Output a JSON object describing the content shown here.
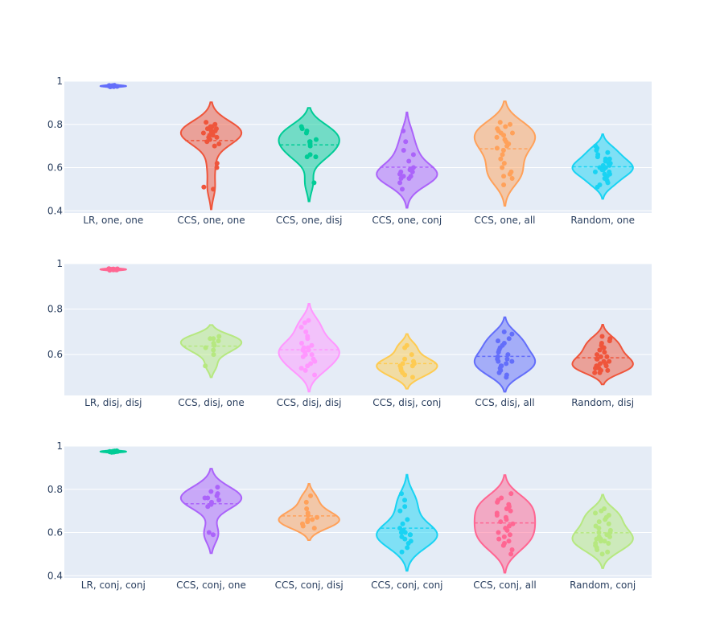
{
  "chart_data": [
    {
      "type": "violin",
      "ylim": [
        0.39,
        1.0
      ],
      "yticks": [
        0.4,
        0.6,
        0.8,
        1.0
      ],
      "ytick_labels": [
        "0.4",
        "0.6",
        "0.8",
        "1"
      ],
      "grid": true,
      "categories": [
        "LR, one, one",
        "CCS, one, one",
        "CCS, one, disj",
        "CCS, one, conj",
        "CCS, one, all",
        "Random, one"
      ],
      "colors": [
        "#636efa",
        "#EF553B",
        "#00cc96",
        "#ab63fa",
        "#FFA15A",
        "#19d3f3"
      ],
      "series": [
        {
          "values": [
            0.978,
            0.976,
            0.98,
            0.975,
            0.979,
            0.977,
            0.981,
            0.974,
            0.978,
            0.976
          ]
        },
        {
          "values": [
            0.81,
            0.8,
            0.79,
            0.79,
            0.78,
            0.78,
            0.77,
            0.77,
            0.77,
            0.76,
            0.76,
            0.76,
            0.75,
            0.75,
            0.74,
            0.74,
            0.73,
            0.72,
            0.71,
            0.7,
            0.62,
            0.6,
            0.51,
            0.5
          ]
        },
        {
          "values": [
            0.79,
            0.78,
            0.77,
            0.76,
            0.73,
            0.72,
            0.72,
            0.71,
            0.7,
            0.66,
            0.65,
            0.65,
            0.53
          ]
        },
        {
          "values": [
            0.77,
            0.72,
            0.68,
            0.66,
            0.63,
            0.6,
            0.59,
            0.58,
            0.58,
            0.57,
            0.56,
            0.56,
            0.55,
            0.55,
            0.53,
            0.5
          ]
        },
        {
          "values": [
            0.81,
            0.8,
            0.79,
            0.78,
            0.77,
            0.76,
            0.76,
            0.75,
            0.74,
            0.73,
            0.72,
            0.71,
            0.7,
            0.69,
            0.68,
            0.66,
            0.64,
            0.62,
            0.6,
            0.58,
            0.57,
            0.56,
            0.55,
            0.52
          ]
        },
        {
          "values": [
            0.7,
            0.69,
            0.68,
            0.67,
            0.66,
            0.65,
            0.64,
            0.64,
            0.63,
            0.62,
            0.62,
            0.61,
            0.61,
            0.6,
            0.6,
            0.6,
            0.59,
            0.59,
            0.58,
            0.58,
            0.57,
            0.57,
            0.56,
            0.55,
            0.54,
            0.53,
            0.52,
            0.51
          ]
        }
      ]
    },
    {
      "type": "violin",
      "ylim": [
        0.42,
        1.0
      ],
      "yticks": [
        0.6,
        0.8,
        1.0
      ],
      "ytick_labels": [
        "0.6",
        "0.8",
        "1"
      ],
      "grid": true,
      "categories": [
        "LR, disj, disj",
        "CCS, disj, one",
        "CCS, disj, disj",
        "CCS, disj, conj",
        "CCS, disj, all",
        "Random, disj"
      ],
      "colors": [
        "#FF6692",
        "#B6E880",
        "#FF97FF",
        "#FECB52",
        "#636efa",
        "#EF553B"
      ],
      "series": [
        {
          "values": [
            0.975,
            0.973,
            0.977,
            0.972,
            0.976,
            0.974,
            0.978,
            0.971,
            0.975,
            0.974
          ]
        },
        {
          "values": [
            0.68,
            0.67,
            0.67,
            0.66,
            0.65,
            0.64,
            0.63,
            0.62,
            0.6,
            0.55
          ]
        },
        {
          "values": [
            0.75,
            0.74,
            0.72,
            0.7,
            0.68,
            0.67,
            0.65,
            0.64,
            0.63,
            0.63,
            0.62,
            0.62,
            0.61,
            0.6,
            0.6,
            0.59,
            0.58,
            0.57,
            0.56,
            0.55,
            0.54,
            0.53,
            0.51
          ]
        },
        {
          "values": [
            0.64,
            0.63,
            0.6,
            0.58,
            0.57,
            0.56,
            0.56,
            0.55,
            0.55,
            0.54,
            0.53,
            0.52,
            0.51,
            0.5
          ]
        },
        {
          "values": [
            0.7,
            0.69,
            0.67,
            0.66,
            0.65,
            0.64,
            0.63,
            0.62,
            0.61,
            0.6,
            0.59,
            0.58,
            0.58,
            0.57,
            0.57,
            0.56,
            0.55,
            0.55,
            0.54,
            0.53,
            0.52,
            0.51,
            0.5
          ]
        },
        {
          "values": [
            0.68,
            0.67,
            0.66,
            0.65,
            0.64,
            0.63,
            0.63,
            0.62,
            0.61,
            0.6,
            0.59,
            0.59,
            0.58,
            0.58,
            0.57,
            0.57,
            0.56,
            0.56,
            0.55,
            0.55,
            0.55,
            0.54,
            0.54,
            0.53,
            0.53,
            0.52,
            0.52
          ]
        }
      ]
    },
    {
      "type": "violin",
      "ylim": [
        0.39,
        1.0
      ],
      "yticks": [
        0.4,
        0.6,
        0.8,
        1.0
      ],
      "ytick_labels": [
        "0.4",
        "0.6",
        "0.8",
        "1"
      ],
      "grid": true,
      "categories": [
        "LR, conj, conj",
        "CCS, conj, one",
        "CCS, conj, disj",
        "CCS, conj, conj",
        "CCS, conj, all",
        "Random, conj"
      ],
      "colors": [
        "#00cc96",
        "#ab63fa",
        "#FFA15A",
        "#19d3f3",
        "#FF6692",
        "#B6E880"
      ],
      "series": [
        {
          "values": [
            0.975,
            0.973,
            0.977,
            0.972,
            0.976,
            0.974,
            0.978,
            0.971,
            0.975,
            0.974
          ]
        },
        {
          "values": [
            0.81,
            0.79,
            0.78,
            0.77,
            0.76,
            0.76,
            0.75,
            0.74,
            0.73,
            0.72,
            0.6,
            0.59
          ]
        },
        {
          "values": [
            0.77,
            0.74,
            0.71,
            0.69,
            0.68,
            0.67,
            0.66,
            0.66,
            0.65,
            0.64,
            0.63,
            0.62
          ]
        },
        {
          "values": [
            0.78,
            0.75,
            0.72,
            0.7,
            0.66,
            0.64,
            0.62,
            0.61,
            0.6,
            0.6,
            0.59,
            0.59,
            0.58,
            0.57,
            0.56,
            0.55,
            0.53,
            0.51
          ]
        },
        {
          "values": [
            0.78,
            0.76,
            0.75,
            0.74,
            0.73,
            0.72,
            0.71,
            0.7,
            0.69,
            0.68,
            0.67,
            0.66,
            0.65,
            0.64,
            0.63,
            0.62,
            0.61,
            0.6,
            0.59,
            0.58,
            0.57,
            0.56,
            0.55,
            0.54,
            0.52,
            0.5
          ]
        },
        {
          "values": [
            0.71,
            0.7,
            0.69,
            0.68,
            0.67,
            0.66,
            0.65,
            0.64,
            0.63,
            0.62,
            0.61,
            0.6,
            0.6,
            0.59,
            0.58,
            0.58,
            0.57,
            0.57,
            0.56,
            0.56,
            0.55,
            0.55,
            0.54,
            0.53,
            0.52,
            0.51,
            0.5
          ]
        }
      ]
    }
  ]
}
